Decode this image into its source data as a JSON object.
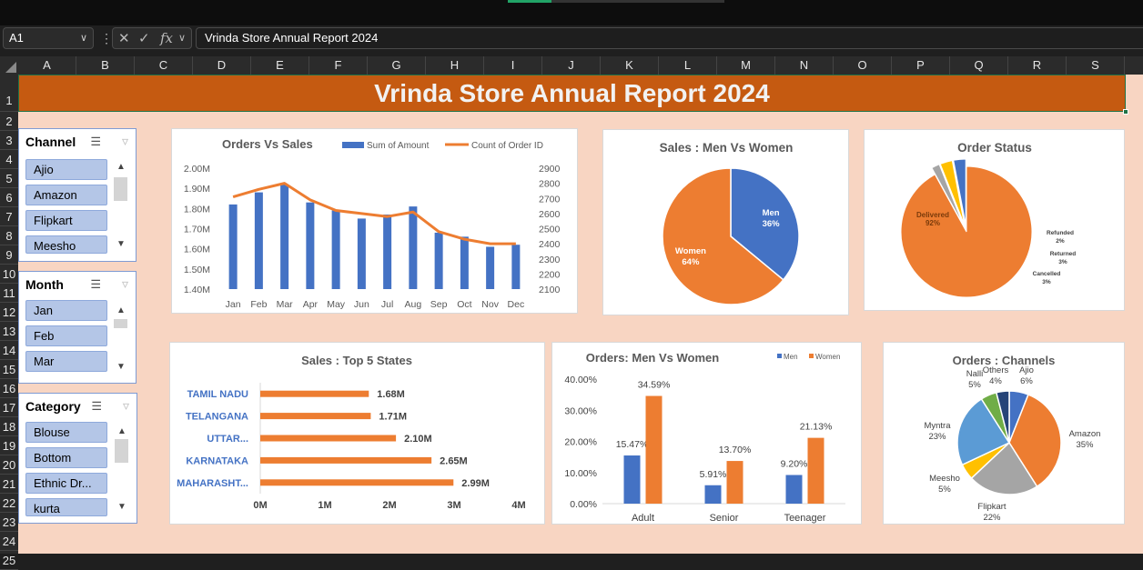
{
  "formula_bar": {
    "name_box": "A1",
    "formula": "Vrinda Store Annual Report 2024"
  },
  "columns": [
    "A",
    "B",
    "C",
    "D",
    "E",
    "F",
    "G",
    "H",
    "I",
    "J",
    "K",
    "L",
    "M",
    "N",
    "O",
    "P",
    "Q",
    "R",
    "S"
  ],
  "rows": [
    "1",
    "2",
    "3",
    "4",
    "5",
    "6",
    "7",
    "8",
    "9",
    "10",
    "11",
    "12",
    "13",
    "14",
    "15",
    "16",
    "17",
    "18",
    "19",
    "20",
    "21",
    "22",
    "23",
    "24",
    "25"
  ],
  "report_title": "Vrinda Store Annual Report 2024",
  "slicers": {
    "channel": {
      "title": "Channel",
      "items": [
        "Ajio",
        "Amazon",
        "Flipkart",
        "Meesho"
      ]
    },
    "month": {
      "title": "Month",
      "items": [
        "Jan",
        "Feb",
        "Mar"
      ]
    },
    "category": {
      "title": "Category",
      "items": [
        "Blouse",
        "Bottom",
        "Ethnic Dr...",
        "kurta"
      ]
    }
  },
  "chart_data": [
    {
      "id": "orders_vs_sales",
      "type": "bar",
      "title": "Orders Vs Sales",
      "categories": [
        "Jan",
        "Feb",
        "Mar",
        "Apr",
        "May",
        "Jun",
        "Jul",
        "Aug",
        "Sep",
        "Oct",
        "Nov",
        "Dec"
      ],
      "series": [
        {
          "name": "Sum of Amount",
          "type": "bar",
          "axis": "left",
          "color": "#4472c4",
          "values": [
            1.82,
            1.88,
            1.92,
            1.83,
            1.79,
            1.75,
            1.77,
            1.81,
            1.68,
            1.66,
            1.61,
            1.62
          ]
        },
        {
          "name": "Count of Order ID",
          "type": "line",
          "axis": "right",
          "color": "#ed7d31",
          "values": [
            2710,
            2760,
            2800,
            2690,
            2620,
            2600,
            2580,
            2610,
            2480,
            2430,
            2400,
            2400
          ]
        }
      ],
      "y_left": {
        "min": 1.4,
        "max": 2.0,
        "ticks": [
          "1.40M",
          "1.50M",
          "1.60M",
          "1.70M",
          "1.80M",
          "1.90M",
          "2.00M"
        ]
      },
      "y_right": {
        "min": 2100,
        "max": 2900,
        "ticks": [
          "2100",
          "2200",
          "2300",
          "2400",
          "2500",
          "2600",
          "2700",
          "2800",
          "2900"
        ]
      }
    },
    {
      "id": "sales_men_vs_women",
      "type": "pie",
      "title": "Sales : Men Vs Women",
      "slices": [
        {
          "label": "Men",
          "pct_label": "36%",
          "value": 36,
          "color": "#4472c4"
        },
        {
          "label": "Women",
          "pct_label": "64%",
          "value": 64,
          "color": "#ed7d31"
        }
      ]
    },
    {
      "id": "order_status",
      "type": "pie",
      "title": "Order Status",
      "slices": [
        {
          "label": "Delivered",
          "pct_label": "92%",
          "value": 92,
          "color": "#ed7d31"
        },
        {
          "label": "Refunded",
          "pct_label": "2%",
          "value": 2,
          "color": "#a5a5a5"
        },
        {
          "label": "Returned",
          "pct_label": "3%",
          "value": 3,
          "color": "#ffc000"
        },
        {
          "label": "Cancelled",
          "pct_label": "3%",
          "value": 3,
          "color": "#4472c4"
        }
      ]
    },
    {
      "id": "top5_states",
      "type": "bar",
      "orientation": "horizontal",
      "title": "Sales : Top 5 States",
      "categories": [
        "TAMIL NADU",
        "TELANGANA",
        "UTTAR...",
        "KARNATAKA",
        "MAHARASHT..."
      ],
      "values": [
        1.68,
        1.71,
        2.1,
        2.65,
        2.99
      ],
      "value_labels": [
        "1.68M",
        "1.71M",
        "2.10M",
        "2.65M",
        "2.99M"
      ],
      "x_ticks": [
        "0M",
        "1M",
        "2M",
        "3M",
        "4M"
      ],
      "xlim": [
        0,
        4
      ],
      "color": "#ed7d31",
      "label_color": "#4472c4"
    },
    {
      "id": "orders_men_vs_women",
      "type": "bar",
      "title": "Orders: Men Vs Women",
      "categories": [
        "Adult",
        "Senior",
        "Teenager"
      ],
      "series": [
        {
          "name": "Men",
          "color": "#4472c4",
          "values": [
            15.47,
            5.91,
            9.2
          ],
          "labels": [
            "15.47%",
            "5.91%",
            "9.20%"
          ]
        },
        {
          "name": "Women",
          "color": "#ed7d31",
          "values": [
            34.59,
            13.7,
            21.13
          ],
          "labels": [
            "34.59%",
            "13.70%",
            "21.13%"
          ]
        }
      ],
      "ylim": [
        0,
        40
      ],
      "y_ticks": [
        "0.00%",
        "10.00%",
        "20.00%",
        "30.00%",
        "40.00%"
      ]
    },
    {
      "id": "orders_channels",
      "type": "pie",
      "title": "Orders : Channels",
      "slices": [
        {
          "label": "Ajio",
          "pct_label": "6%",
          "value": 6,
          "color": "#4472c4"
        },
        {
          "label": "Amazon",
          "pct_label": "35%",
          "value": 35,
          "color": "#ed7d31"
        },
        {
          "label": "Flipkart",
          "pct_label": "22%",
          "value": 22,
          "color": "#a5a5a5"
        },
        {
          "label": "Meesho",
          "pct_label": "5%",
          "value": 5,
          "color": "#ffc000"
        },
        {
          "label": "Myntra",
          "pct_label": "23%",
          "value": 23,
          "color": "#5b9bd5"
        },
        {
          "label": "Nalli",
          "pct_label": "5%",
          "value": 5,
          "color": "#70ad47"
        },
        {
          "label": "Others",
          "pct_label": "4%",
          "value": 4,
          "color": "#264478"
        }
      ]
    }
  ]
}
